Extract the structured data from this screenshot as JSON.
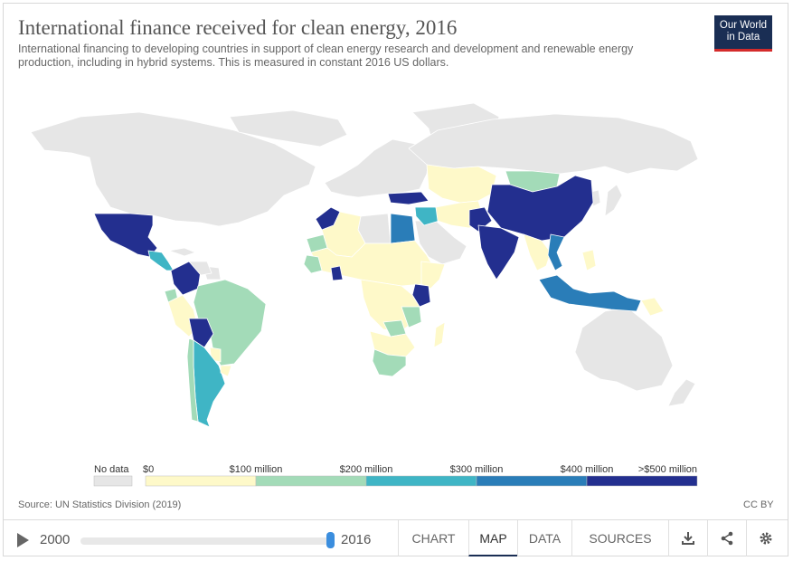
{
  "title": "International finance received for clean energy, 2016",
  "subtitle": "International financing to developing countries in support of clean energy research and development and renewable energy production, including in hybrid systems. This is measured in constant 2016 US dollars.",
  "logo": {
    "line1": "Our World",
    "line2": "in Data"
  },
  "legend": {
    "no_data_label": "No data",
    "no_data_color": "#e6e6e6",
    "bins": [
      {
        "label": "$0",
        "color": "#fef9c9"
      },
      {
        "label": "$100 million",
        "color": "#a3dbb8"
      },
      {
        "label": "$200 million",
        "color": "#3fb5c5"
      },
      {
        "label": "$300 million",
        "color": "#2a7db8"
      },
      {
        "label": "$400 million",
        "color": "#232f8f"
      }
    ],
    "end_label": ">$500 million"
  },
  "source": "Source: UN Statistics Division (2019)",
  "license": "CC BY",
  "timeline": {
    "start_year": "2000",
    "end_year": "2016",
    "position": 1.0
  },
  "tabs": [
    {
      "label": "CHART",
      "active": false
    },
    {
      "label": "MAP",
      "active": true
    },
    {
      "label": "DATA",
      "active": false
    },
    {
      "label": "SOURCES",
      "active": false
    }
  ],
  "icons": [
    "download-icon",
    "share-icon",
    "settings-icon"
  ]
}
